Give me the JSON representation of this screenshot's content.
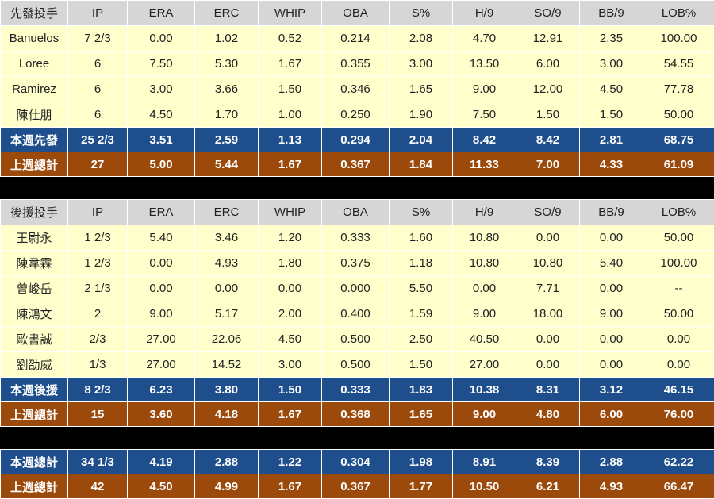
{
  "columns": [
    "IP",
    "ERA",
    "ERC",
    "WHIP",
    "OBA",
    "S%",
    "H/9",
    "SO/9",
    "BB/9",
    "LOB%"
  ],
  "starters": {
    "header": "先發投手",
    "rows": [
      {
        "name": "Banuelos",
        "values": [
          "7 2/3",
          "0.00",
          "1.02",
          "0.52",
          "0.214",
          "2.08",
          "4.70",
          "12.91",
          "2.35",
          "100.00"
        ]
      },
      {
        "name": "Loree",
        "values": [
          "6",
          "7.50",
          "5.30",
          "1.67",
          "0.355",
          "3.00",
          "13.50",
          "6.00",
          "3.00",
          "54.55"
        ]
      },
      {
        "name": "Ramirez",
        "values": [
          "6",
          "3.00",
          "3.66",
          "1.50",
          "0.346",
          "1.65",
          "9.00",
          "12.00",
          "4.50",
          "77.78"
        ]
      },
      {
        "name": "陳仕朋",
        "values": [
          "6",
          "4.50",
          "1.70",
          "1.00",
          "0.250",
          "1.90",
          "7.50",
          "1.50",
          "1.50",
          "50.00"
        ]
      }
    ],
    "this_week": {
      "name": "本週先發",
      "values": [
        "25 2/3",
        "3.51",
        "2.59",
        "1.13",
        "0.294",
        "2.04",
        "8.42",
        "8.42",
        "2.81",
        "68.75"
      ]
    },
    "last_week": {
      "name": "上週總計",
      "values": [
        "27",
        "5.00",
        "5.44",
        "1.67",
        "0.367",
        "1.84",
        "11.33",
        "7.00",
        "4.33",
        "61.09"
      ]
    }
  },
  "relievers": {
    "header": "後援投手",
    "rows": [
      {
        "name": "王尉永",
        "values": [
          "1 2/3",
          "5.40",
          "3.46",
          "1.20",
          "0.333",
          "1.60",
          "10.80",
          "0.00",
          "0.00",
          "50.00"
        ]
      },
      {
        "name": "陳韋霖",
        "values": [
          "1 2/3",
          "0.00",
          "4.93",
          "1.80",
          "0.375",
          "1.18",
          "10.80",
          "10.80",
          "5.40",
          "100.00"
        ]
      },
      {
        "name": "曾峻岳",
        "values": [
          "2 1/3",
          "0.00",
          "0.00",
          "0.00",
          "0.000",
          "5.50",
          "0.00",
          "7.71",
          "0.00",
          "--"
        ]
      },
      {
        "name": "陳鴻文",
        "values": [
          "2",
          "9.00",
          "5.17",
          "2.00",
          "0.400",
          "1.59",
          "9.00",
          "18.00",
          "9.00",
          "50.00"
        ]
      },
      {
        "name": "歐書誠",
        "values": [
          "2/3",
          "27.00",
          "22.06",
          "4.50",
          "0.500",
          "2.50",
          "40.50",
          "0.00",
          "0.00",
          "0.00"
        ]
      },
      {
        "name": "劉劭威",
        "values": [
          "1/3",
          "27.00",
          "14.52",
          "3.00",
          "0.500",
          "1.50",
          "27.00",
          "0.00",
          "0.00",
          "0.00"
        ]
      }
    ],
    "this_week": {
      "name": "本週後援",
      "values": [
        "8 2/3",
        "6.23",
        "3.80",
        "1.50",
        "0.333",
        "1.83",
        "10.38",
        "8.31",
        "3.12",
        "46.15"
      ]
    },
    "last_week": {
      "name": "上週總計",
      "values": [
        "15",
        "3.60",
        "4.18",
        "1.67",
        "0.368",
        "1.65",
        "9.00",
        "4.80",
        "6.00",
        "76.00"
      ]
    }
  },
  "totals": {
    "this_week": {
      "name": "本週總計",
      "values": [
        "34 1/3",
        "4.19",
        "2.88",
        "1.22",
        "0.304",
        "1.98",
        "8.91",
        "8.39",
        "2.88",
        "62.22"
      ]
    },
    "last_week": {
      "name": "上週總計",
      "values": [
        "42",
        "4.50",
        "4.99",
        "1.67",
        "0.367",
        "1.77",
        "10.50",
        "6.21",
        "4.93",
        "66.47"
      ]
    }
  },
  "colors": {
    "header_bg": "#d6d6d6",
    "row_bg": "#ffffcc",
    "this_week_bg": "#1f4e8c",
    "last_week_bg": "#9b4a0c",
    "separator": "#000000"
  }
}
